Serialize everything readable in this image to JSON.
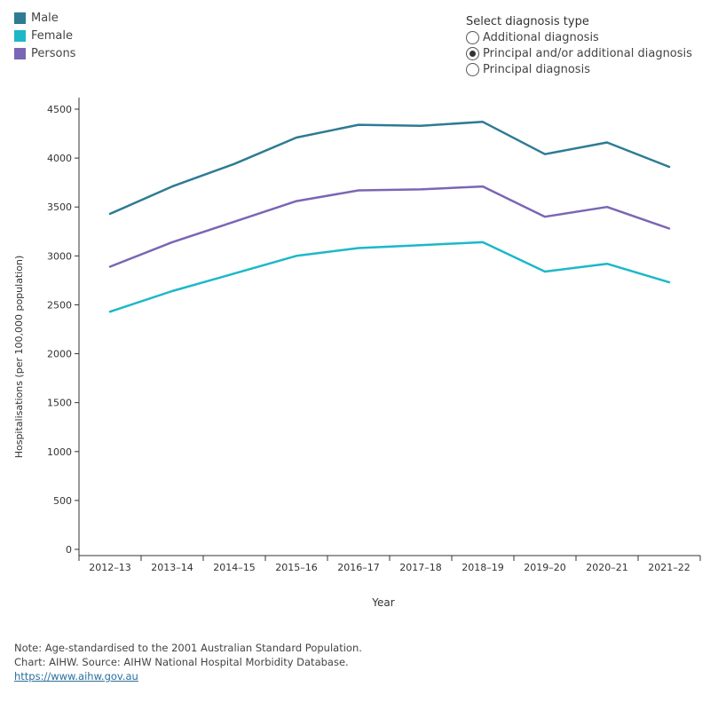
{
  "legend": [
    {
      "label": "Male",
      "color": "#2e7b93"
    },
    {
      "label": "Female",
      "color": "#1cb8c8"
    },
    {
      "label": "Persons",
      "color": "#7b66b5"
    }
  ],
  "selector": {
    "title": "Select diagnosis type",
    "options": [
      {
        "label": "Additional diagnosis",
        "selected": false
      },
      {
        "label": "Principal and/or additional diagnosis",
        "selected": true
      },
      {
        "label": "Principal diagnosis",
        "selected": false
      }
    ]
  },
  "chart_data": {
    "type": "line",
    "title": "",
    "xlabel": "Year",
    "ylabel": "Hospitalisations (per 100,000 population)",
    "ylim": [
      0,
      4600
    ],
    "yticks": [
      0,
      500,
      1000,
      1500,
      2000,
      2500,
      3000,
      3500,
      4000,
      4500
    ],
    "categories": [
      "2012–13",
      "2013–14",
      "2014–15",
      "2015–16",
      "2016–17",
      "2017–18",
      "2018–19",
      "2019–20",
      "2020–21",
      "2021–22"
    ],
    "series": [
      {
        "name": "Male",
        "color": "#2e7b93",
        "values": [
          3430,
          3710,
          3940,
          4210,
          4340,
          4330,
          4370,
          4040,
          4160,
          3910
        ]
      },
      {
        "name": "Persons",
        "color": "#7b66b5",
        "values": [
          2890,
          3140,
          3350,
          3560,
          3670,
          3680,
          3710,
          3400,
          3500,
          3280
        ]
      },
      {
        "name": "Female",
        "color": "#1cb8c8",
        "values": [
          2430,
          2640,
          2820,
          3000,
          3080,
          3110,
          3140,
          2840,
          2920,
          2730
        ]
      }
    ]
  },
  "notes": {
    "note": "Note: Age-standardised to the 2001 Australian Standard Population.",
    "source": "Chart: AIHW. Source: AIHW National Hospital Morbidity Database.",
    "link": "https://www.aihw.gov.au"
  }
}
